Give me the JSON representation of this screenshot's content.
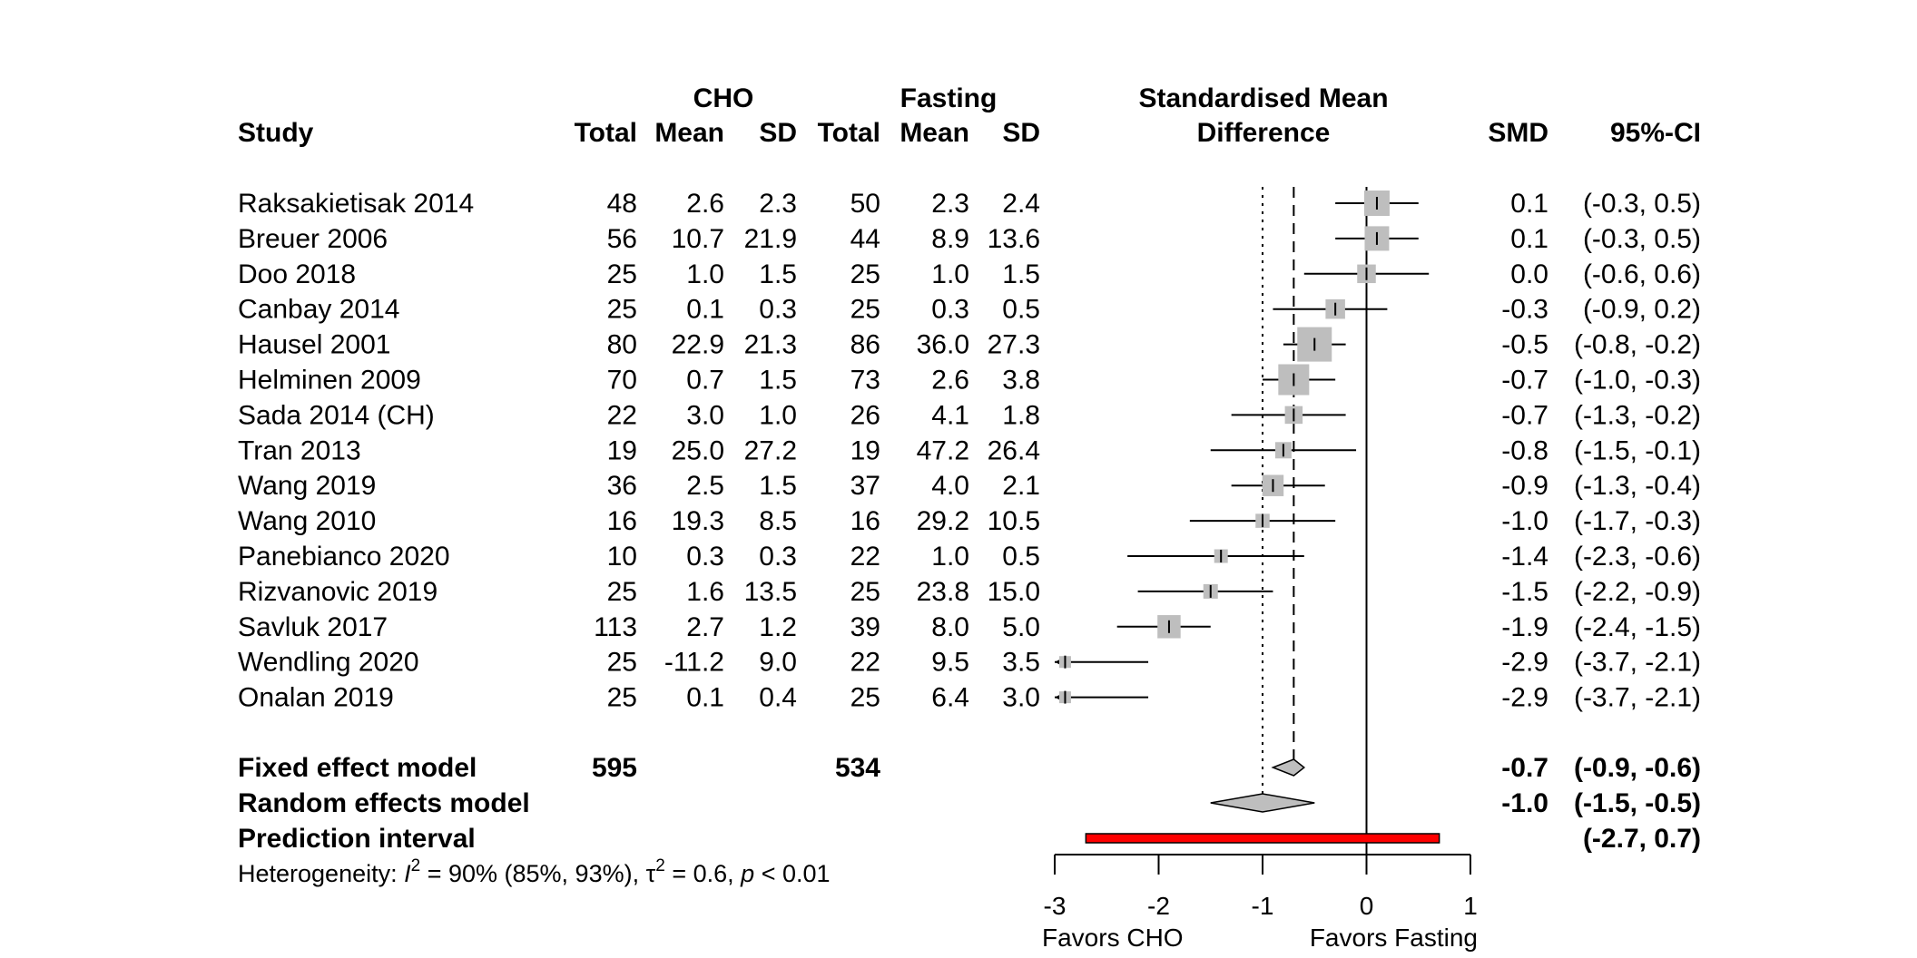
{
  "header": {
    "study": "Study",
    "group1": "CHO",
    "group2": "Fasting",
    "total": "Total",
    "mean": "Mean",
    "sd": "SD",
    "plot_title_line1": "Standardised Mean",
    "plot_title_line2": "Difference",
    "smd": "SMD",
    "ci": "95%-CI"
  },
  "chart_data": {
    "type": "forest",
    "studies": [
      {
        "name": "Raksakietisak 2014",
        "t1": "48",
        "m1": "2.6",
        "s1": "2.3",
        "t2": "50",
        "m2": "2.3",
        "s2": "2.4",
        "smd": 0.1,
        "lo": -0.3,
        "hi": 0.5,
        "smd_text": "0.1",
        "ci_text": "(-0.3,  0.5)",
        "weight": 0.4
      },
      {
        "name": "Breuer 2006",
        "t1": "56",
        "m1": "10.7",
        "s1": "21.9",
        "t2": "44",
        "m2": "8.9",
        "s2": "13.6",
        "smd": 0.1,
        "lo": -0.3,
        "hi": 0.5,
        "smd_text": "0.1",
        "ci_text": "(-0.3,  0.5)",
        "weight": 0.38
      },
      {
        "name": "Doo 2018",
        "t1": "25",
        "m1": "1.0",
        "s1": "1.5",
        "t2": "25",
        "m2": "1.0",
        "s2": "1.5",
        "smd": 0.0,
        "lo": -0.6,
        "hi": 0.6,
        "smd_text": "0.0",
        "ci_text": "(-0.6,  0.6)",
        "weight": 0.25
      },
      {
        "name": "Canbay 2014",
        "t1": "25",
        "m1": "0.1",
        "s1": "0.3",
        "t2": "25",
        "m2": "0.3",
        "s2": "0.5",
        "smd": -0.3,
        "lo": -0.9,
        "hi": 0.2,
        "smd_text": "-0.3",
        "ci_text": "(-0.9,  0.2)",
        "weight": 0.27
      },
      {
        "name": "Hausel 2001",
        "t1": "80",
        "m1": "22.9",
        "s1": "21.3",
        "t2": "86",
        "m2": "36.0",
        "s2": "27.3",
        "smd": -0.5,
        "lo": -0.8,
        "hi": -0.2,
        "smd_text": "-0.5",
        "ci_text": "(-0.8, -0.2)",
        "weight": 0.6
      },
      {
        "name": "Helminen 2009",
        "t1": "70",
        "m1": "0.7",
        "s1": "1.5",
        "t2": "73",
        "m2": "2.6",
        "s2": "3.8",
        "smd": -0.7,
        "lo": -1.0,
        "hi": -0.3,
        "smd_text": "-0.7",
        "ci_text": "(-1.0, -0.3)",
        "weight": 0.52
      },
      {
        "name": "Sada 2014 (CH)",
        "t1": "22",
        "m1": "3.0",
        "s1": "1.0",
        "t2": "26",
        "m2": "4.1",
        "s2": "1.8",
        "smd": -0.7,
        "lo": -1.3,
        "hi": -0.2,
        "smd_text": "-0.7",
        "ci_text": "(-1.3, -0.2)",
        "weight": 0.23
      },
      {
        "name": "Tran 2013",
        "t1": "19",
        "m1": "25.0",
        "s1": "27.2",
        "t2": "19",
        "m2": "47.2",
        "s2": "26.4",
        "smd": -0.8,
        "lo": -1.5,
        "hi": -0.1,
        "smd_text": "-0.8",
        "ci_text": "(-1.5, -0.1)",
        "weight": 0.2
      },
      {
        "name": "Wang 2019",
        "t1": "36",
        "m1": "2.5",
        "s1": "1.5",
        "t2": "37",
        "m2": "4.0",
        "s2": "2.1",
        "smd": -0.9,
        "lo": -1.3,
        "hi": -0.4,
        "smd_text": "-0.9",
        "ci_text": "(-1.3, -0.4)",
        "weight": 0.31
      },
      {
        "name": "Wang 2010",
        "t1": "16",
        "m1": "19.3",
        "s1": "8.5",
        "t2": "16",
        "m2": "29.2",
        "s2": "10.5",
        "smd": -1.0,
        "lo": -1.7,
        "hi": -0.3,
        "smd_text": "-1.0",
        "ci_text": "(-1.7, -0.3)",
        "weight": 0.15
      },
      {
        "name": "Panebianco 2020",
        "t1": "10",
        "m1": "0.3",
        "s1": "0.3",
        "t2": "22",
        "m2": "1.0",
        "s2": "0.5",
        "smd": -1.4,
        "lo": -2.3,
        "hi": -0.6,
        "smd_text": "-1.4",
        "ci_text": "(-2.3, -0.6)",
        "weight": 0.14
      },
      {
        "name": "Rizvanovic 2019",
        "t1": "25",
        "m1": "1.6",
        "s1": "13.5",
        "t2": "25",
        "m2": "23.8",
        "s2": "15.0",
        "smd": -1.5,
        "lo": -2.2,
        "hi": -0.9,
        "smd_text": "-1.5",
        "ci_text": "(-2.2, -0.9)",
        "weight": 0.16
      },
      {
        "name": "Savluk 2017",
        "t1": "113",
        "m1": "2.7",
        "s1": "1.2",
        "t2": "39",
        "m2": "8.0",
        "s2": "5.0",
        "smd": -1.9,
        "lo": -2.4,
        "hi": -1.5,
        "smd_text": "-1.9",
        "ci_text": "(-2.4, -1.5)",
        "weight": 0.35
      },
      {
        "name": "Wendling 2020",
        "t1": "25",
        "m1": "-11.2",
        "s1": "9.0",
        "t2": "22",
        "m2": "9.5",
        "s2": "3.5",
        "smd": -2.9,
        "lo": -3.7,
        "hi": -2.1,
        "smd_text": "-2.9",
        "ci_text": "(-3.7, -2.1)",
        "weight": 0.1
      },
      {
        "name": "Onalan 2019",
        "t1": "25",
        "m1": "0.1",
        "s1": "0.4",
        "t2": "25",
        "m2": "6.4",
        "s2": "3.0",
        "smd": -2.9,
        "lo": -3.7,
        "hi": -2.1,
        "smd_text": "-2.9",
        "ci_text": "(-3.7, -2.1)",
        "weight": 0.1
      }
    ],
    "fixed": {
      "label": "Fixed effect model",
      "t1": "595",
      "t2": "534",
      "smd": -0.7,
      "lo": -0.9,
      "hi": -0.6,
      "smd_text": "-0.7",
      "ci_text": "(-0.9, -0.6)"
    },
    "random": {
      "label": "Random effects model",
      "smd": -1.0,
      "lo": -1.5,
      "hi": -0.5,
      "smd_text": "-1.0",
      "ci_text": "(-1.5, -0.5)"
    },
    "prediction": {
      "label": "Prediction interval",
      "lo": -2.7,
      "hi": 0.7,
      "ci_text": "(-2.7,  0.7)"
    },
    "heterogeneity": {
      "prefix": "Heterogeneity: ",
      "i2_symbol": "I",
      "i2_text": " = 90% (85%, 93%), ",
      "tau2_symbol": "τ",
      "tau2_text": " = 0.6, ",
      "p_symbol": "p",
      "p_text": " < 0.01",
      "superscript": "2"
    },
    "xaxis": {
      "ticks": [
        -3,
        -2,
        -1,
        0,
        1
      ],
      "xlim": [
        -3,
        1
      ],
      "left_label": "Favors CHO",
      "right_label": "Favors Fasting"
    },
    "reference_line": 0,
    "colors": {
      "square": "#bebebe",
      "diamond": "#bebebe",
      "prediction_fill": "#ff0000",
      "line": "#000000"
    }
  }
}
